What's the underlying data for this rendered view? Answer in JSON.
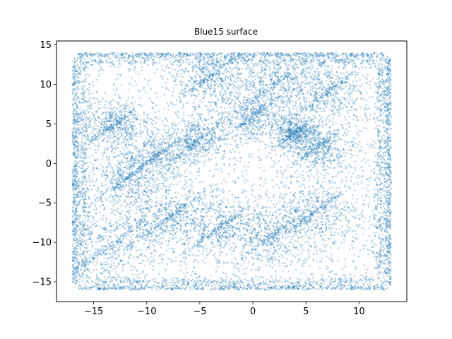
{
  "chart_data": {
    "type": "scatter",
    "title": "Blue15 surface",
    "xlabel": "",
    "ylabel": "",
    "xlim": [
      -18.5,
      14.5
    ],
    "ylim": [
      -17.5,
      15.5
    ],
    "xticks": [
      -15,
      -10,
      -5,
      0,
      5,
      10
    ],
    "yticks": [
      -15,
      -10,
      -5,
      0,
      5,
      10,
      15
    ],
    "xtick_labels": [
      "−15",
      "−10",
      "−5",
      "0",
      "5",
      "10"
    ],
    "ytick_labels": [
      "−15",
      "−10",
      "−5",
      "0",
      "5",
      "10",
      "15"
    ],
    "grid": false,
    "legend": "none",
    "marker_color": "#1f77b4",
    "marker_style": "x",
    "point_region": {
      "x_range": [
        -17,
        13
      ],
      "y_range": [
        -16,
        14
      ]
    },
    "dense_clusters": [
      {
        "x": -13,
        "y": 5,
        "spread": 1.5
      },
      {
        "x": -12,
        "y": -2,
        "spread": 2
      },
      {
        "x": -9,
        "y": 1,
        "spread": 1.8
      },
      {
        "x": -5,
        "y": 3,
        "spread": 1.5
      },
      {
        "x": -13,
        "y": -10,
        "spread": 2.5
      },
      {
        "x": -8,
        "y": -7,
        "spread": 2
      },
      {
        "x": -3,
        "y": -8,
        "spread": 2
      },
      {
        "x": 2,
        "y": -9,
        "spread": 2
      },
      {
        "x": 6,
        "y": -6,
        "spread": 2
      },
      {
        "x": 2,
        "y": 10,
        "spread": 2
      },
      {
        "x": 7,
        "y": 9,
        "spread": 2
      },
      {
        "x": -4,
        "y": 11,
        "spread": 1.8
      },
      {
        "x": 0,
        "y": 6,
        "spread": 1.5
      },
      {
        "x": 4,
        "y": 4,
        "spread": 1
      },
      {
        "x": 6,
        "y": 2,
        "spread": 1.5
      }
    ]
  }
}
